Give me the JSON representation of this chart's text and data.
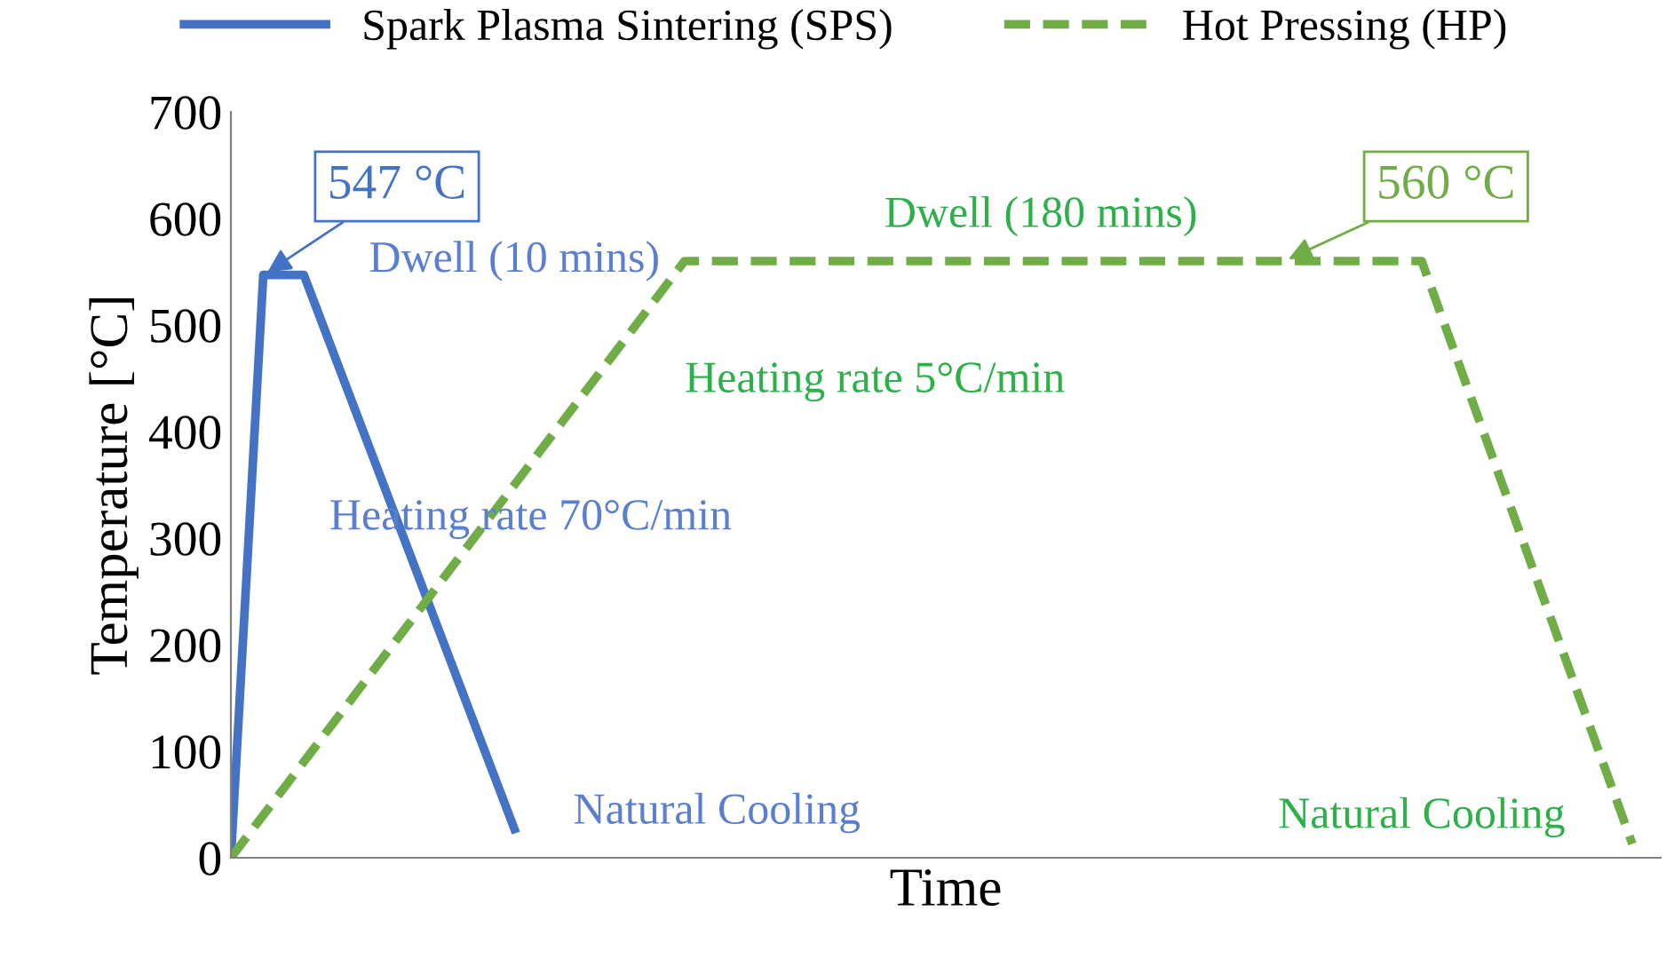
{
  "chart_data": {
    "type": "line",
    "xlabel": "Time",
    "ylabel": "Temperature [°C]",
    "ylim": [
      0,
      700
    ],
    "yticks": [
      0,
      100,
      200,
      300,
      400,
      500,
      600,
      700
    ],
    "tick_labels": "y",
    "grid": false,
    "legend": "top",
    "marker": "none",
    "categories": [
      null,
      null,
      null,
      null,
      null,
      null,
      null,
      null,
      null,
      null,
      null,
      null,
      null,
      null,
      null,
      null,
      null,
      null,
      null,
      null,
      null,
      null,
      null,
      null,
      null,
      null,
      null,
      null,
      null,
      null,
      null,
      null,
      null,
      null,
      null,
      null,
      null,
      null,
      null,
      null,
      null,
      null,
      null,
      null,
      null,
      null,
      null,
      null,
      null,
      null,
      null,
      null,
      null,
      null,
      null,
      null,
      null,
      null,
      null,
      null,
      null,
      null,
      null,
      null,
      null,
      null,
      null,
      null,
      null,
      null,
      null,
      null,
      null,
      null,
      null,
      null,
      null,
      null,
      null,
      null,
      null,
      null,
      null,
      null,
      null,
      null,
      null,
      null,
      null,
      null,
      null,
      null,
      null,
      null,
      null,
      null,
      null,
      null,
      null,
      null,
      null,
      null,
      null,
      null,
      null,
      null,
      null,
      null,
      null,
      null,
      null,
      null,
      null,
      null,
      null,
      null,
      null,
      null,
      null,
      null,
      null,
      null,
      null,
      null,
      null,
      null,
      null,
      null,
      null,
      null,
      null,
      null,
      null,
      null,
      null,
      null,
      null,
      null,
      null,
      null,
      null,
      null,
      null,
      null,
      null,
      null,
      null,
      null,
      null,
      null,
      null,
      null,
      null,
      null,
      null,
      null,
      null,
      null,
      null,
      null,
      null,
      null,
      null,
      null,
      null,
      null,
      null,
      null,
      null,
      null,
      null,
      null,
      null,
      null,
      null,
      null,
      null
    ],
    "series": [
      {
        "name": "Spark Plasma Sintering (SPS)",
        "color": "#4472c4",
        "line_style": "solid",
        "values": [
          0,
          null,
          null,
          null,
          547,
          null,
          null,
          null,
          null,
          547,
          null,
          null,
          null,
          null,
          null,
          null,
          null,
          null,
          null,
          null,
          null,
          null,
          null,
          null,
          null,
          null,
          null,
          null,
          null,
          null,
          null,
          null,
          null,
          null,
          null,
          27,
          null,
          null,
          null,
          null,
          null,
          null,
          null,
          null,
          null,
          null,
          null,
          null,
          null,
          null,
          null,
          null,
          null,
          null,
          null,
          null,
          null,
          null,
          null,
          null,
          null,
          null,
          null,
          null,
          null,
          null,
          null,
          null,
          null,
          null,
          null,
          null,
          null,
          null,
          null,
          null,
          null,
          null,
          null,
          null,
          null,
          null,
          null,
          null,
          null,
          null,
          null,
          null,
          null,
          null,
          null,
          null,
          null,
          null,
          null,
          null,
          null,
          null,
          null,
          null,
          null,
          null,
          null,
          null,
          null,
          null,
          null,
          null,
          null,
          null,
          null,
          null,
          null,
          null,
          null,
          null,
          null,
          null,
          null,
          null,
          null,
          null,
          null,
          null,
          null,
          null,
          null,
          null,
          null,
          null,
          null,
          null,
          null,
          null,
          null,
          null,
          null,
          null,
          null,
          null,
          null,
          null,
          null,
          null,
          null,
          null,
          null,
          null,
          null,
          null,
          null,
          null,
          null,
          null,
          null,
          null,
          null,
          null,
          null,
          null,
          null,
          null,
          null,
          null,
          null,
          null,
          null,
          null,
          null,
          null,
          null,
          null,
          null,
          null,
          null,
          null,
          null
        ]
      },
      {
        "name": "Hot Pressing (HP)",
        "color": "#70ad47",
        "line_style": "dashed",
        "values": [
          0,
          null,
          null,
          null,
          null,
          null,
          null,
          null,
          null,
          null,
          null,
          null,
          null,
          null,
          null,
          null,
          null,
          null,
          null,
          null,
          null,
          null,
          null,
          null,
          null,
          null,
          null,
          null,
          null,
          null,
          null,
          null,
          null,
          null,
          null,
          null,
          null,
          null,
          null,
          null,
          null,
          null,
          null,
          null,
          null,
          null,
          null,
          null,
          null,
          null,
          null,
          null,
          null,
          null,
          null,
          null,
          560,
          null,
          null,
          null,
          null,
          null,
          null,
          null,
          null,
          null,
          null,
          null,
          null,
          null,
          null,
          null,
          null,
          null,
          null,
          null,
          null,
          null,
          null,
          null,
          null,
          null,
          null,
          null,
          null,
          null,
          null,
          null,
          null,
          null,
          null,
          null,
          null,
          null,
          null,
          null,
          null,
          null,
          null,
          null,
          null,
          null,
          null,
          null,
          null,
          null,
          null,
          null,
          null,
          null,
          null,
          null,
          null,
          null,
          null,
          null,
          null,
          null,
          null,
          null,
          null,
          null,
          null,
          null,
          null,
          null,
          null,
          null,
          null,
          null,
          null,
          null,
          null,
          null,
          null,
          null,
          null,
          null,
          null,
          null,
          null,
          null,
          null,
          null,
          null,
          null,
          null,
          560,
          null,
          null,
          null,
          null,
          null,
          null,
          null,
          null,
          null,
          null,
          null,
          null,
          null,
          null,
          null,
          null,
          null,
          null,
          null,
          null,
          null,
          null,
          null,
          null,
          null,
          13,
          null,
          null,
          null
        ]
      }
    ],
    "annotations": [
      "547 °C",
      "Dwell (10 mins)",
      "Heating rate 70°C/min",
      "Natural Cooling",
      "560 °C",
      "Dwell (180 mins)",
      "Heating rate 5°C/min",
      "Natural Cooling"
    ]
  }
}
